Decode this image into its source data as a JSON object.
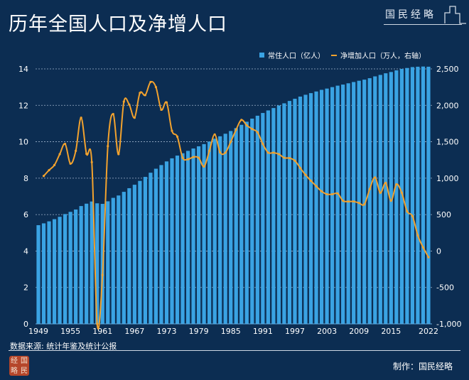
{
  "header": {
    "title": "历年全国人口及净增人口",
    "brand": "国民经略"
  },
  "footer": {
    "source": "数据来源: 统计年鉴及统计公报",
    "maker": "制作：国民经略",
    "seal_chars": [
      "经",
      "国",
      "略",
      "民"
    ]
  },
  "colors": {
    "background": "#0c2d52",
    "bar": "#3aa3e3",
    "line": "#f2a22e",
    "grid": "#9fb4cc"
  },
  "chart_data": {
    "type": "bar+line",
    "title": "历年全国人口及净增人口",
    "legend": [
      "常住人口（亿人）",
      "净增加人口（万人，右轴）"
    ],
    "legend_position": "top-right",
    "x_tick_labels": [
      "1949",
      "1955",
      "1961",
      "1967",
      "1973",
      "1979",
      "1985",
      "1991",
      "1997",
      "2003",
      "2009",
      "2015",
      "2022"
    ],
    "y_left": {
      "ylim": [
        0,
        14
      ],
      "ticks": [
        "0",
        "2",
        "4",
        "6",
        "8",
        "10",
        "12",
        "14"
      ]
    },
    "y_right": {
      "ylim": [
        -1000,
        2500
      ],
      "ticks": [
        "-1,000",
        "-500",
        "0",
        "500",
        "1,000",
        "1,500",
        "2,000",
        "2,500"
      ]
    },
    "grid": "horizontal dotted",
    "series": [
      {
        "name": "常住人口（亿人）",
        "type": "bar",
        "axis": "left",
        "x_start": 1949,
        "values": [
          5.42,
          5.52,
          5.63,
          5.75,
          5.88,
          6.03,
          6.15,
          6.28,
          6.47,
          6.6,
          6.72,
          6.62,
          6.59,
          6.73,
          6.92,
          7.05,
          7.25,
          7.45,
          7.64,
          7.85,
          8.07,
          8.3,
          8.52,
          8.72,
          8.92,
          9.09,
          9.24,
          9.37,
          9.5,
          9.63,
          9.75,
          9.87,
          10.01,
          10.17,
          10.3,
          10.44,
          10.59,
          10.75,
          10.93,
          11.1,
          11.27,
          11.43,
          11.58,
          11.72,
          11.85,
          11.99,
          12.11,
          12.24,
          12.36,
          12.48,
          12.58,
          12.67,
          12.76,
          12.85,
          12.92,
          13.0,
          13.08,
          13.14,
          13.21,
          13.28,
          13.35,
          13.41,
          13.49,
          13.59,
          13.67,
          13.76,
          13.83,
          13.92,
          14.0,
          14.05,
          14.1,
          14.12,
          14.13,
          14.12
        ]
      },
      {
        "name": "净增加人口（万人，右轴）",
        "type": "line",
        "axis": "right",
        "x_start": 1950,
        "values": [
          1030,
          1110,
          1180,
          1330,
          1470,
          1200,
          1375,
          1830,
          1335,
          1220,
          -1000,
          -330,
          1440,
          1880,
          1330,
          2050,
          2010,
          1830,
          2170,
          2140,
          2320,
          2250,
          1940,
          2040,
          1650,
          1570,
          1280,
          1260,
          1290,
          1280,
          1160,
          1375,
          1600,
          1355,
          1350,
          1500,
          1665,
          1800,
          1725,
          1675,
          1630,
          1470,
          1350,
          1350,
          1330,
          1280,
          1275,
          1240,
          1140,
          1045,
          965,
          890,
          820,
          780,
          780,
          790,
          690,
          680,
          680,
          660,
          640,
          850,
          1010,
          800,
          935,
          690,
          915,
          800,
          545,
          480,
          215,
          50,
          -85
        ]
      }
    ]
  }
}
